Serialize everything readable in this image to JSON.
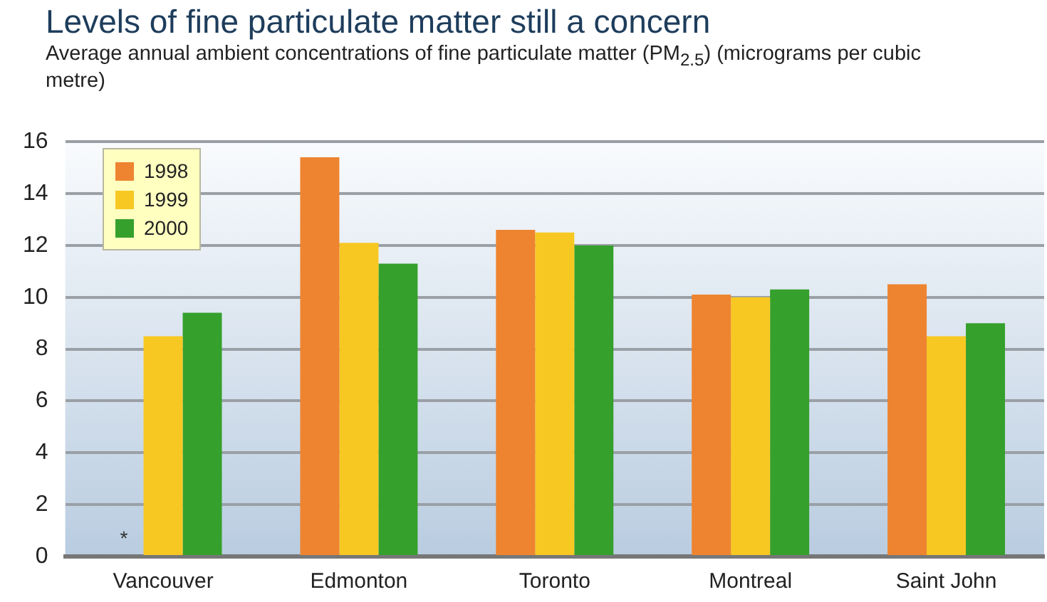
{
  "chart_data": {
    "type": "bar",
    "title": "Levels of fine particulate matter still a concern",
    "subtitle": "Average annual ambient concentrations of fine particulate matter (PM$_{2.5}$) (micrograms per cubic metre)",
    "categories": [
      "Vancouver",
      "Edmonton",
      "Toronto",
      "Montreal",
      "Saint John"
    ],
    "series": [
      {
        "name": "1998",
        "color": "#ee8430",
        "values": [
          null,
          15.4,
          12.6,
          10.1,
          10.5
        ]
      },
      {
        "name": "1999",
        "color": "#f8c822",
        "values": [
          8.5,
          12.1,
          12.5,
          10.0,
          8.5
        ]
      },
      {
        "name": "2000",
        "color": "#35a02c",
        "values": [
          9.4,
          11.3,
          12.0,
          10.3,
          9.0
        ]
      }
    ],
    "ylim": [
      0,
      16
    ],
    "yticks": [
      0,
      2,
      4,
      6,
      8,
      10,
      12,
      14,
      16
    ],
    "grid": "y",
    "legend": "top left",
    "annotations": [
      "*"
    ]
  }
}
